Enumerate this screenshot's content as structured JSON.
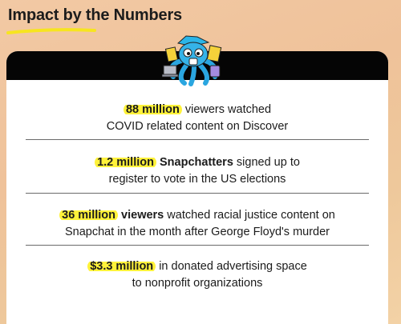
{
  "page": {
    "title": "Impact by the Numbers"
  },
  "colors": {
    "highlight": "#fff23a",
    "card": "#ffffff",
    "header_bar": "#050505",
    "underline": "#f7e51f"
  },
  "mascot": {
    "icon": "octopus-mascot-icon"
  },
  "stats": [
    {
      "highlight": "88 million",
      "line1_rest": " viewers watched",
      "line2": "COVID related content on Discover"
    },
    {
      "highlight": "1.2 million",
      "bold": " Snapchatters",
      "line1_rest": " signed up to",
      "line2": "register to vote in the US elections"
    },
    {
      "highlight": "36 million",
      "bold": " viewers",
      "line1_rest": " watched racial justice content on",
      "line2": "Snapchat in the month after George Floyd's murder"
    },
    {
      "highlight": "$3.3 million",
      "line1_rest": " in donated advertising space",
      "line2": "to nonprofit organizations"
    }
  ]
}
